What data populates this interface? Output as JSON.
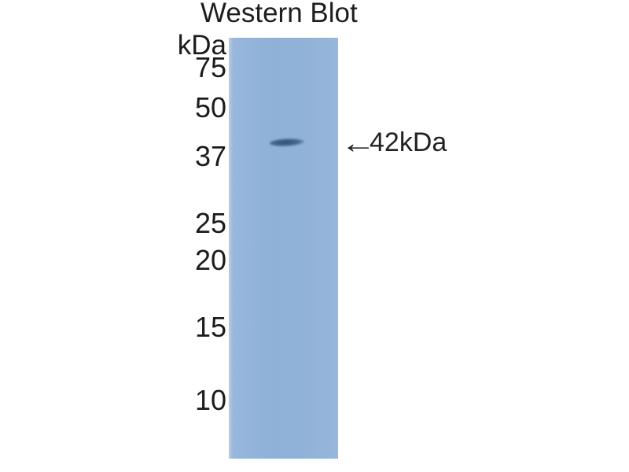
{
  "figure": {
    "title": "Western Blot",
    "unit_label": "kDa",
    "markers": [
      {
        "label": "75",
        "value_kda": 75
      },
      {
        "label": "50",
        "value_kda": 50
      },
      {
        "label": "37",
        "value_kda": 37
      },
      {
        "label": "25",
        "value_kda": 25
      },
      {
        "label": "20",
        "value_kda": 20
      },
      {
        "label": "15",
        "value_kda": 15
      },
      {
        "label": "10",
        "value_kda": 10
      }
    ],
    "annotation": {
      "arrow": "←",
      "label": "42kDa"
    },
    "colors": {
      "lane": "#8fb1d8",
      "lane_left_highlight": "#b7cce6",
      "band": "#2e4f72",
      "text": "#1b1b1b",
      "background": "#ffffff"
    }
  },
  "chart_data": {
    "type": "heatmap",
    "title": "Western Blot",
    "ylabel": "kDa",
    "yticks": [
      75,
      50,
      37,
      25,
      20,
      15,
      10
    ],
    "lanes": 1,
    "bands": [
      {
        "lane": 1,
        "molecular_weight_kda": 42,
        "annotation": "42kDa",
        "intensity": "strong"
      }
    ],
    "grid": false,
    "legend": "none"
  }
}
